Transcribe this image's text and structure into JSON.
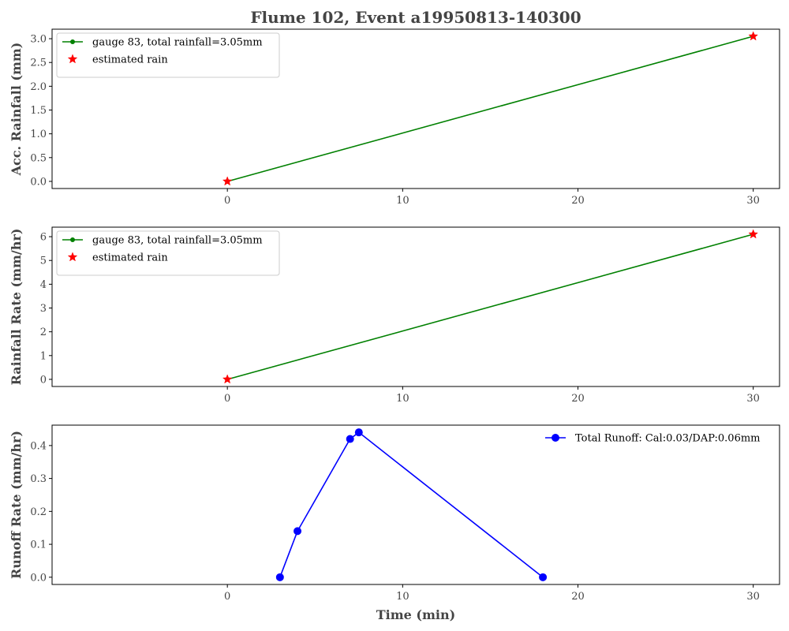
{
  "figure_title": "Flume 102, Event a19950813-140300",
  "xlabel": "Time (min)",
  "chart_data": [
    {
      "type": "line",
      "ylabel": "Acc. Rainfall (mm)",
      "xlim": [
        -10,
        31.5
      ],
      "ylim": [
        -0.15,
        3.2
      ],
      "xticks": [
        0,
        10,
        20,
        30
      ],
      "yticks": [
        "0.0",
        "0.5",
        "1.0",
        "1.5",
        "2.0",
        "2.5",
        "3.0"
      ],
      "legend_position": "upper left",
      "series": [
        {
          "name": "gauge 83, total rainfall=3.05mm",
          "color": "#008000",
          "marker": "circle",
          "x": [
            0,
            30
          ],
          "y": [
            0,
            3.05
          ]
        },
        {
          "name": "estimated rain",
          "color": "#ff0000",
          "marker": "star",
          "line": false,
          "x": [
            0,
            30
          ],
          "y": [
            0,
            3.05
          ]
        }
      ]
    },
    {
      "type": "line",
      "ylabel": "Rainfall Rate (mm/hr)",
      "xlim": [
        -10,
        31.5
      ],
      "ylim": [
        -0.3,
        6.4
      ],
      "xticks": [
        0,
        10,
        20,
        30
      ],
      "yticks": [
        "0",
        "1",
        "2",
        "3",
        "4",
        "5",
        "6"
      ],
      "legend_position": "upper left",
      "series": [
        {
          "name": "gauge 83, total rainfall=3.05mm",
          "color": "#008000",
          "marker": "circle",
          "x": [
            0,
            30
          ],
          "y": [
            0,
            6.1
          ]
        },
        {
          "name": "estimated rain",
          "color": "#ff0000",
          "marker": "star",
          "line": false,
          "x": [
            0,
            30
          ],
          "y": [
            0,
            6.1
          ]
        }
      ]
    },
    {
      "type": "line",
      "ylabel": "Runoff Rate (mm/hr)",
      "xlim": [
        -10,
        31.5
      ],
      "ylim": [
        -0.022,
        0.462
      ],
      "xticks": [
        0,
        10,
        20,
        30
      ],
      "yticks": [
        "0.0",
        "0.1",
        "0.2",
        "0.3",
        "0.4"
      ],
      "legend_position": "upper right",
      "series": [
        {
          "name": "Total Runoff: Cal:0.03/DAP:0.06mm",
          "color": "#0000ff",
          "marker": "circle",
          "x": [
            3,
            4,
            7,
            7.5,
            18
          ],
          "y": [
            0,
            0.14,
            0.42,
            0.44,
            0
          ]
        }
      ]
    }
  ]
}
